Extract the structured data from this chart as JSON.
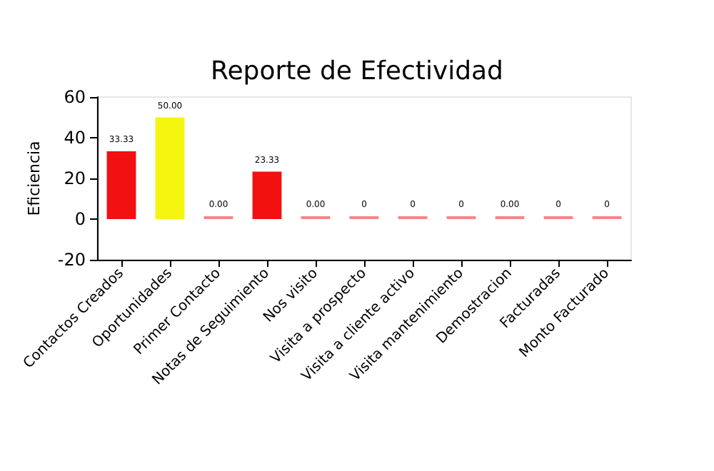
{
  "chart_data": {
    "type": "bar",
    "title": "Reporte de Efectividad",
    "ylabel": "Eficiencia",
    "categories": [
      "Contactos Creados",
      "Oportunidades",
      "Primer Contacto",
      "Notas de Seguimiento",
      "Nos visito",
      "Visita a prospecto",
      "Visita a cliente activo",
      "Visita mantenimiento",
      "Demostracion",
      "Facturadas",
      "Monto Facturado"
    ],
    "values": [
      33.33,
      50,
      0,
      23.33,
      0,
      0,
      0,
      0,
      0,
      0,
      0
    ],
    "colors": [
      "#f21010",
      "#f5f510",
      "#f78585",
      "#f21010",
      "#f78585",
      "#f78585",
      "#f78585",
      "#f78585",
      "#f78585",
      "#f78585",
      "#f78585"
    ],
    "value_labels": [
      "33.33",
      "50.00",
      "0.00",
      "23.33",
      "0.00",
      "0",
      "0",
      "0",
      "0.00",
      "0",
      "0"
    ],
    "ylim": [
      -20,
      60
    ],
    "yticks": [
      -20,
      0,
      20,
      40,
      60
    ],
    "grid": false
  }
}
